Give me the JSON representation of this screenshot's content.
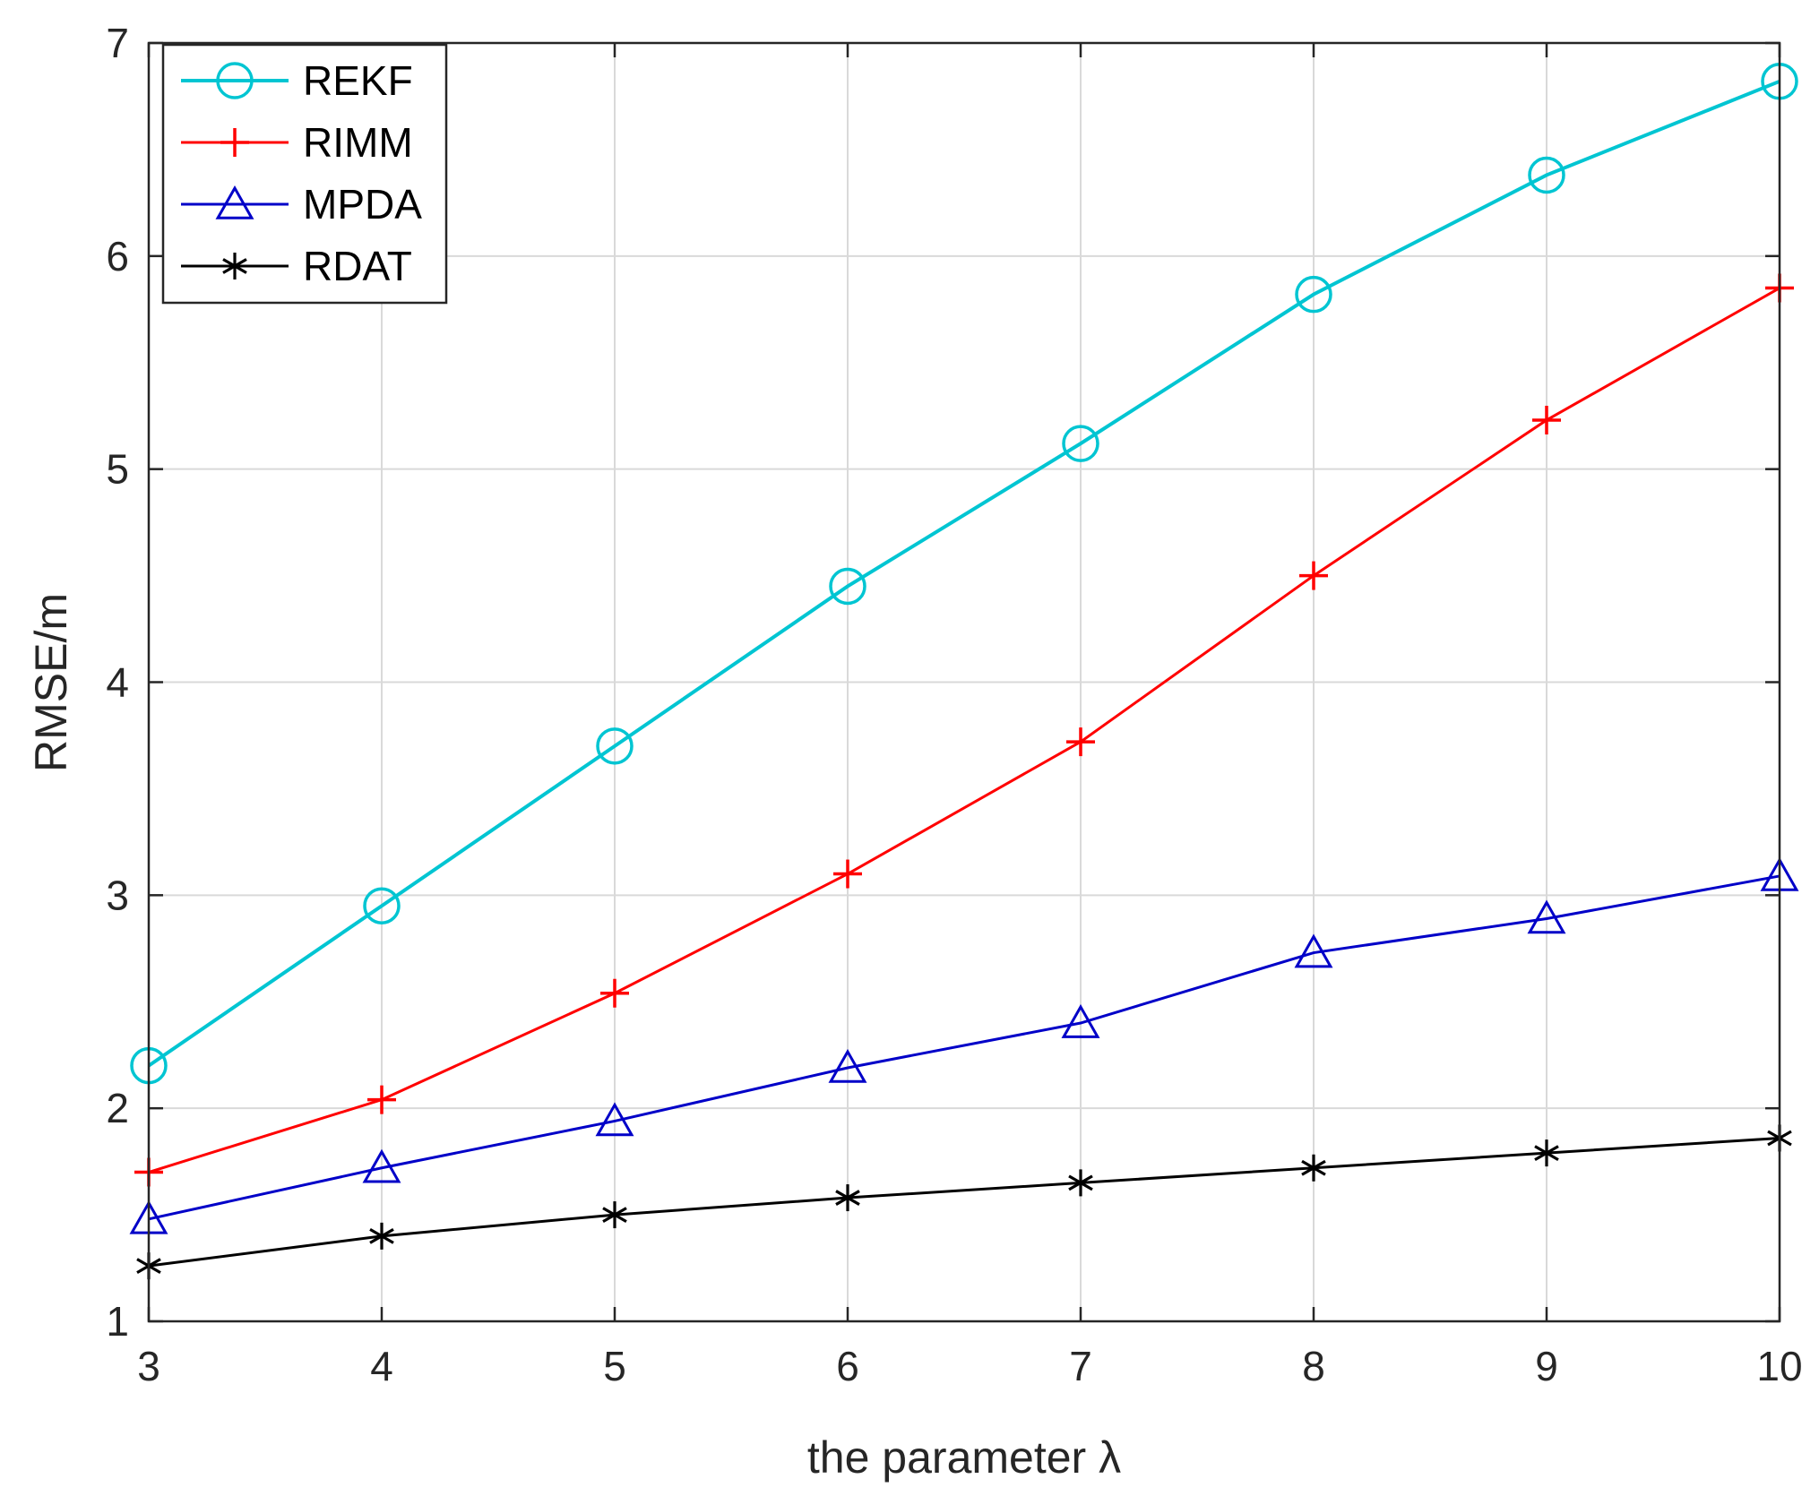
{
  "chart_data": {
    "type": "line",
    "xlabel": "the parameter λ",
    "ylabel": "RMSE/m",
    "x": [
      3,
      4,
      5,
      6,
      7,
      8,
      9,
      10
    ],
    "xlim": [
      3,
      10
    ],
    "ylim": [
      1,
      7
    ],
    "xticks": [
      "3",
      "4",
      "5",
      "6",
      "7",
      "8",
      "9",
      "10"
    ],
    "yticks": [
      "1",
      "2",
      "3",
      "4",
      "5",
      "6",
      "7"
    ],
    "grid": true,
    "legend_position": "top-left",
    "series": [
      {
        "name": "REKF",
        "color": "#00c5d2",
        "marker": "circle",
        "values": [
          2.2,
          2.95,
          3.7,
          4.45,
          5.12,
          5.82,
          6.38,
          6.82
        ]
      },
      {
        "name": "RIMM",
        "color": "#ff0000",
        "marker": "plus",
        "values": [
          1.7,
          2.04,
          2.54,
          3.1,
          3.72,
          4.5,
          5.23,
          5.85
        ]
      },
      {
        "name": "MPDA",
        "color": "#0000c8",
        "marker": "triangle",
        "values": [
          1.48,
          1.72,
          1.94,
          2.19,
          2.4,
          2.73,
          2.89,
          3.09
        ]
      },
      {
        "name": "RDAT",
        "color": "#000000",
        "marker": "star",
        "values": [
          1.26,
          1.4,
          1.5,
          1.58,
          1.65,
          1.72,
          1.79,
          1.86
        ]
      }
    ]
  }
}
